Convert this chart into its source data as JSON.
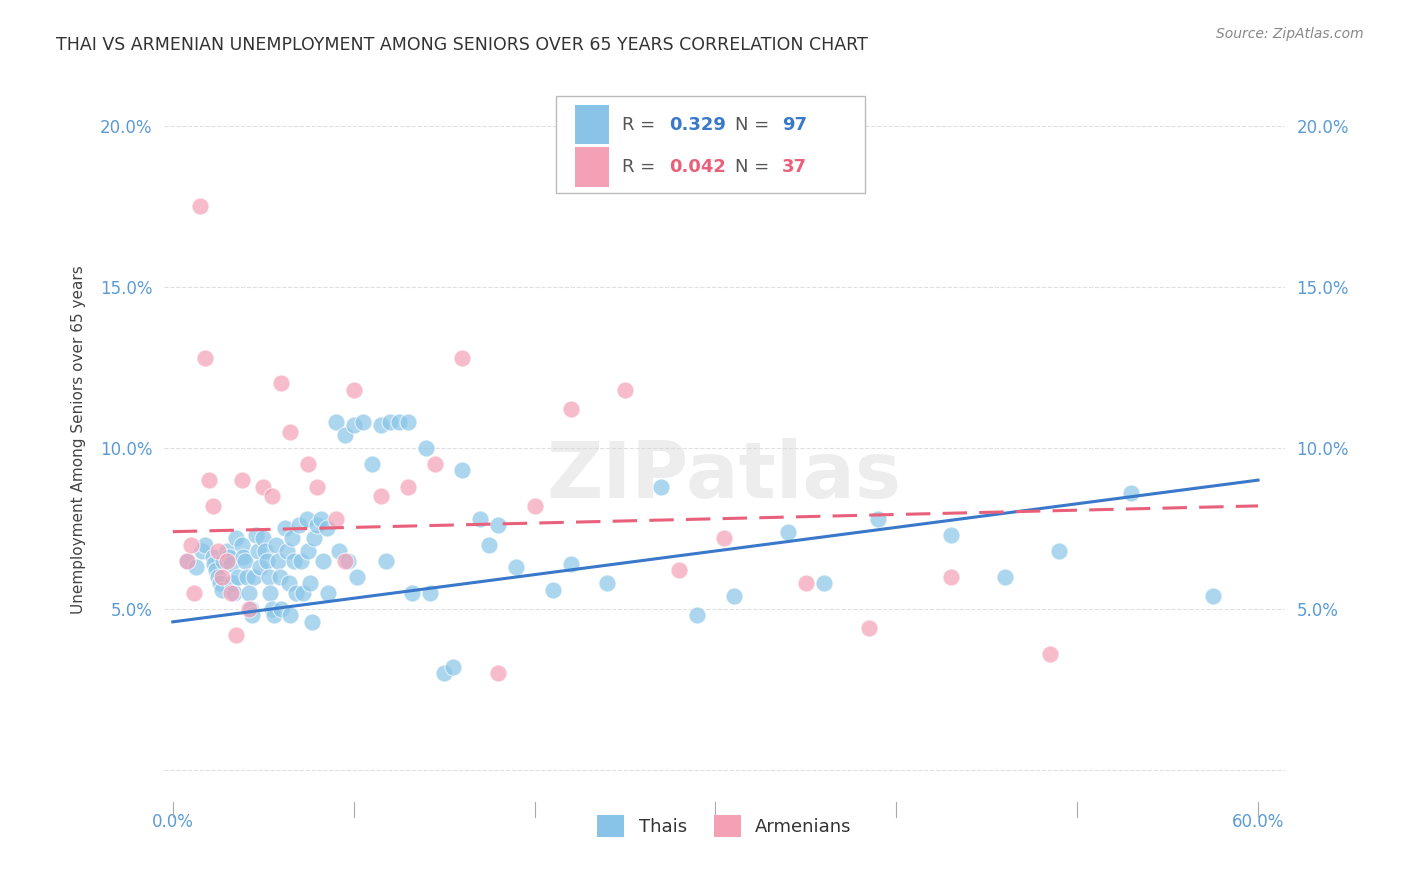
{
  "title": "THAI VS ARMENIAN UNEMPLOYMENT AMONG SENIORS OVER 65 YEARS CORRELATION CHART",
  "source": "Source: ZipAtlas.com",
  "ylabel": "Unemployment Among Seniors over 65 years",
  "xlim": [
    -0.005,
    0.615
  ],
  "ylim": [
    -0.01,
    0.215
  ],
  "xticks": [
    0.0,
    0.6
  ],
  "xticklabels": [
    "0.0%",
    "60.0%"
  ],
  "yticks": [
    0.0,
    0.05,
    0.1,
    0.15,
    0.2
  ],
  "yticklabels": [
    "",
    "5.0%",
    "10.0%",
    "15.0%",
    "20.0%"
  ],
  "thai_color": "#89C4E8",
  "armenian_color": "#F4A0B5",
  "thai_line_color": "#3A78C9",
  "armenian_line_color": "#E8607A",
  "watermark": "ZIPatlas",
  "thai_scatter_x": [
    0.008,
    0.013,
    0.016,
    0.018,
    0.022,
    0.023,
    0.024,
    0.025,
    0.026,
    0.027,
    0.028,
    0.03,
    0.031,
    0.032,
    0.033,
    0.034,
    0.035,
    0.036,
    0.038,
    0.039,
    0.04,
    0.041,
    0.042,
    0.043,
    0.044,
    0.045,
    0.046,
    0.047,
    0.048,
    0.05,
    0.051,
    0.052,
    0.053,
    0.054,
    0.055,
    0.056,
    0.057,
    0.058,
    0.059,
    0.06,
    0.062,
    0.063,
    0.064,
    0.065,
    0.066,
    0.067,
    0.068,
    0.07,
    0.071,
    0.072,
    0.074,
    0.075,
    0.076,
    0.077,
    0.078,
    0.08,
    0.082,
    0.083,
    0.085,
    0.086,
    0.09,
    0.092,
    0.095,
    0.097,
    0.1,
    0.102,
    0.105,
    0.11,
    0.115,
    0.118,
    0.12,
    0.125,
    0.13,
    0.132,
    0.14,
    0.142,
    0.15,
    0.155,
    0.16,
    0.17,
    0.175,
    0.18,
    0.19,
    0.21,
    0.22,
    0.24,
    0.27,
    0.29,
    0.31,
    0.34,
    0.36,
    0.39,
    0.43,
    0.46,
    0.49,
    0.53,
    0.575
  ],
  "thai_scatter_y": [
    0.065,
    0.063,
    0.068,
    0.07,
    0.066,
    0.064,
    0.062,
    0.06,
    0.058,
    0.056,
    0.065,
    0.068,
    0.066,
    0.064,
    0.058,
    0.055,
    0.072,
    0.06,
    0.07,
    0.066,
    0.065,
    0.06,
    0.055,
    0.05,
    0.048,
    0.06,
    0.073,
    0.068,
    0.063,
    0.072,
    0.068,
    0.065,
    0.06,
    0.055,
    0.05,
    0.048,
    0.07,
    0.065,
    0.06,
    0.05,
    0.075,
    0.068,
    0.058,
    0.048,
    0.072,
    0.065,
    0.055,
    0.076,
    0.065,
    0.055,
    0.078,
    0.068,
    0.058,
    0.046,
    0.072,
    0.076,
    0.078,
    0.065,
    0.075,
    0.055,
    0.108,
    0.068,
    0.104,
    0.065,
    0.107,
    0.06,
    0.108,
    0.095,
    0.107,
    0.065,
    0.108,
    0.108,
    0.108,
    0.055,
    0.1,
    0.055,
    0.03,
    0.032,
    0.093,
    0.078,
    0.07,
    0.076,
    0.063,
    0.056,
    0.064,
    0.058,
    0.088,
    0.048,
    0.054,
    0.074,
    0.058,
    0.078,
    0.073,
    0.06,
    0.068,
    0.086,
    0.054
  ],
  "armenian_scatter_x": [
    0.008,
    0.01,
    0.012,
    0.015,
    0.018,
    0.02,
    0.022,
    0.025,
    0.027,
    0.03,
    0.032,
    0.035,
    0.038,
    0.042,
    0.05,
    0.055,
    0.06,
    0.065,
    0.075,
    0.08,
    0.09,
    0.095,
    0.1,
    0.115,
    0.13,
    0.145,
    0.16,
    0.18,
    0.2,
    0.22,
    0.25,
    0.28,
    0.305,
    0.35,
    0.385,
    0.43,
    0.485
  ],
  "armenian_scatter_y": [
    0.065,
    0.07,
    0.055,
    0.175,
    0.128,
    0.09,
    0.082,
    0.068,
    0.06,
    0.065,
    0.055,
    0.042,
    0.09,
    0.05,
    0.088,
    0.085,
    0.12,
    0.105,
    0.095,
    0.088,
    0.078,
    0.065,
    0.118,
    0.085,
    0.088,
    0.095,
    0.128,
    0.03,
    0.082,
    0.112,
    0.118,
    0.062,
    0.072,
    0.058,
    0.044,
    0.06,
    0.036
  ],
  "thai_trend_x": [
    0.0,
    0.6
  ],
  "thai_trend_y": [
    0.046,
    0.09
  ],
  "armenian_trend_x": [
    0.0,
    0.6
  ],
  "armenian_trend_y": [
    0.074,
    0.082
  ],
  "background_color": "#FFFFFF",
  "grid_color": "#DDDDDD",
  "title_color": "#333333",
  "axis_color": "#5B9BD5"
}
